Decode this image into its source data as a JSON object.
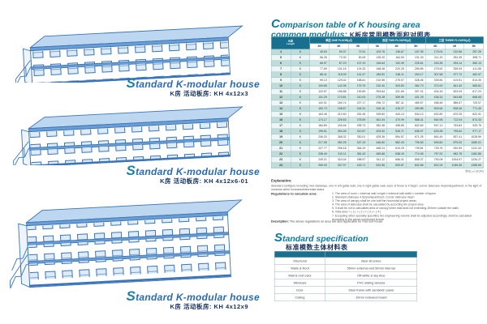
{
  "colors": {
    "accent_teal": "#0d7a9e",
    "navy": "#16325f",
    "drawing_blue": "#3a74ba",
    "table_header": "#19708e",
    "row_stripe": "#cfe8e4"
  },
  "left_panel": {
    "buildings": [
      {
        "title_cap": "S",
        "title_rest": "tandard  K-modular  house",
        "subtitle": "K房 活动板房: KH 4x12x3"
      },
      {
        "title_cap": "S",
        "title_rest": "tandard  K-modular  house",
        "subtitle": "K房 活动板房: KH 4x12x6-01"
      },
      {
        "title_cap": "S",
        "title_rest": "tandard  K-modular  house",
        "subtitle": "K房 活动板房: KH 4x12x9"
      }
    ]
  },
  "comparison": {
    "title_cap": "C",
    "title_line1_rest": "omparison table of K housing area",
    "title_line2": "common modulus:",
    "title_cn": "K板房常用模数面积对照表",
    "unit_note": "单位:㎡ (SQM)",
    "table": {
      "corner_top": "长度",
      "corner_bottom": "Length",
      "groups": [
        "单层 ONE FLOOR(㎡)",
        "双层 TWO FLOORS(㎡)",
        "三层 THREE FLOORS(㎡)"
      ],
      "subcols": [
        "3K",
        "4K",
        "5K",
        "3K",
        "4K",
        "5K",
        "3K",
        "4K",
        "5K"
      ],
      "rows": [
        {
          "len": "4",
          "unit": "K",
          "values": [
            "45.53",
            "59.37",
            "72.91",
            "103.76",
            "136.67",
            "157.05",
            "179.04",
            "210.56",
            "257.29"
          ]
        },
        {
          "len": "5",
          "unit": "K",
          "values": [
            "56.25",
            "73.30",
            "90.05",
            "125.20",
            "164.53",
            "191.33",
            "211.20",
            "252.35",
            "308.71"
          ]
        },
        {
          "len": "6",
          "unit": "K",
          "values": [
            "66.97",
            "87.23",
            "107.19",
            "146.64",
            "192.39",
            "225.61",
            "243.36",
            "294.14",
            "360.13"
          ]
        },
        {
          "len": "7",
          "unit": "K",
          "values": [
            "77.69",
            "101.16",
            "124.33",
            "168.08",
            "220.25",
            "259.89",
            "275.52",
            "335.93",
            "411.55"
          ]
        },
        {
          "len": "8",
          "unit": "K",
          "values": [
            "88.41",
            "115.09",
            "141.47",
            "189.52",
            "248.11",
            "294.17",
            "307.68",
            "377.72",
            "462.97"
          ]
        },
        {
          "len": "9",
          "unit": "K",
          "values": [
            "99.13",
            "129.02",
            "158.61",
            "210.96",
            "275.97",
            "328.45",
            "339.84",
            "419.51",
            "514.39"
          ]
        },
        {
          "len": "10",
          "unit": "K",
          "values": [
            "109.85",
            "142.95",
            "175.75",
            "232.40",
            "303.83",
            "362.73",
            "372.00",
            "461.30",
            "565.81"
          ]
        },
        {
          "len": "11",
          "unit": "K",
          "values": [
            "120.57",
            "156.88",
            "192.89",
            "253.84",
            "331.69",
            "397.01",
            "404.16",
            "503.09",
            "617.23"
          ]
        },
        {
          "len": "12",
          "unit": "K",
          "values": [
            "131.29",
            "170.81",
            "210.03",
            "275.28",
            "359.55",
            "431.29",
            "436.32",
            "544.88",
            "668.65"
          ]
        },
        {
          "len": "13",
          "unit": "K",
          "values": [
            "142.01",
            "184.74",
            "227.17",
            "296.72",
            "387.41",
            "465.57",
            "468.48",
            "586.67",
            "720.07"
          ]
        },
        {
          "len": "14",
          "unit": "K",
          "values": [
            "152.73",
            "198.67",
            "244.31",
            "318.16",
            "415.27",
            "499.85",
            "500.64",
            "628.46",
            "771.49"
          ]
        },
        {
          "len": "15",
          "unit": "K",
          "values": [
            "163.45",
            "212.60",
            "261.45",
            "339.60",
            "443.13",
            "534.13",
            "532.80",
            "670.25",
            "822.91"
          ]
        },
        {
          "len": "16",
          "unit": "K",
          "values": [
            "174.17",
            "226.53",
            "278.59",
            "361.04",
            "470.99",
            "568.41",
            "564.96",
            "712.04",
            "874.33"
          ]
        },
        {
          "len": "17",
          "unit": "K",
          "values": [
            "184.89",
            "240.46",
            "295.73",
            "382.48",
            "498.85",
            "602.69",
            "597.12",
            "753.83",
            "925.75"
          ]
        },
        {
          "len": "18",
          "unit": "K",
          "values": [
            "195.61",
            "254.39",
            "312.87",
            "403.92",
            "526.71",
            "636.97",
            "629.28",
            "795.62",
            "977.17"
          ]
        },
        {
          "len": "19",
          "unit": "K",
          "values": [
            "206.33",
            "268.32",
            "330.01",
            "425.36",
            "554.57",
            "671.25",
            "661.44",
            "837.41",
            "1028.59"
          ]
        },
        {
          "len": "20",
          "unit": "K",
          "values": [
            "217.05",
            "282.25",
            "347.15",
            "446.80",
            "582.43",
            "705.53",
            "693.60",
            "879.20",
            "1080.01"
          ]
        },
        {
          "len": "21",
          "unit": "K",
          "values": [
            "227.77",
            "296.18",
            "364.29",
            "468.24",
            "610.29",
            "739.81",
            "725.76",
            "920.99",
            "1131.43"
          ]
        },
        {
          "len": "22",
          "unit": "K",
          "values": [
            "238.49",
            "310.11",
            "381.43",
            "489.68",
            "638.15",
            "774.09",
            "757.92",
            "962.78",
            "1182.85"
          ]
        },
        {
          "len": "23",
          "unit": "K",
          "values": [
            "249.21",
            "324.04",
            "398.57",
            "511.12",
            "666.01",
            "808.37",
            "790.08",
            "1004.57",
            "1234.27"
          ]
        },
        {
          "len": "24",
          "unit": "K",
          "values": [
            "259.93",
            "337.97",
            "415.71",
            "532.56",
            "693.87",
            "842.65",
            "822.24",
            "1046.36",
            "1285.69"
          ]
        }
      ]
    }
  },
  "explanation": {
    "label": "Explanation:",
    "body": "Standard configure including: two stairways, one in left gable wall, one in right gable wall, each of those is 4.5sqm; corner staircase 4sqm/department, in the light of modulus when increased/decrease stairs."
  },
  "regulations": {
    "label": "Regulations to calculate area:",
    "items": [
      "1. The area of room = external wall Length x external wall width x number of layers",
      "2. Standard staircase 4.5sqm/department; Corner staircase 4sqm",
      "3. The area of canopy shall be one-half the horizontal project areas",
      "4. The area of staircase shall be calculated by according the project area",
      "5. It shall be not to calculated area of canopy when total area not extending 200mm outside the walls",
      "6. Total area = ( 1 ) + ( 2 ) + ( 3 ) + ( 4 )",
      "7. Excepting other specially specified, the engineering volume shall be adjusted accordingly, shall be calculated according to the above mentioned format."
    ]
  },
  "description": {
    "label": "Description:",
    "body": "The above regulations on area are also applicable for Flat roof house"
  },
  "specification": {
    "title_cap": "S",
    "title_rest": "tandard specification",
    "title_cn": "标准模数主体材料表",
    "rows": [
      {
        "item": "Structural",
        "value": "steel structure"
      },
      {
        "item": "Walls & Roof",
        "value": "50mm external and 50mm internal"
      },
      {
        "item": "Wall & roof color",
        "value": "Off-white & sky blue"
      },
      {
        "item": "Windows",
        "value": "PVC sliding window"
      },
      {
        "item": "Door",
        "value": "Steel frame with sandwich panel"
      },
      {
        "item": "Ceiling",
        "value": "10mm rockwool board"
      }
    ]
  }
}
